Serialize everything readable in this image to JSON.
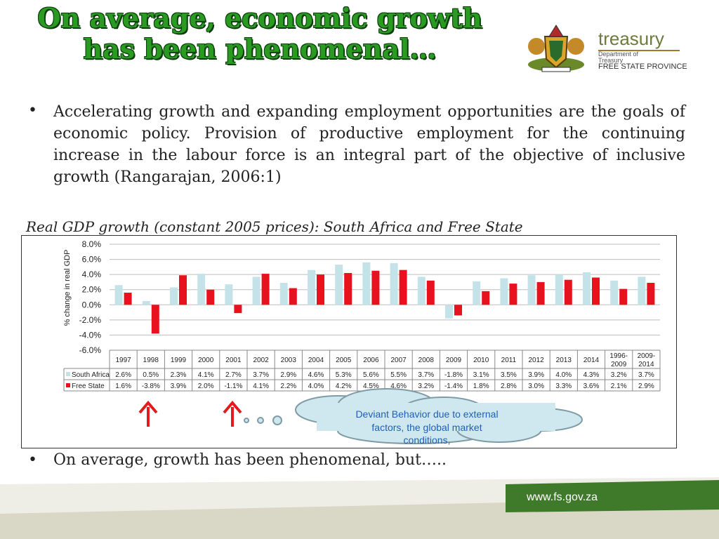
{
  "title_line1": "On average, economic growth",
  "title_line2": "has been phenomenal…",
  "logo": {
    "brand": "treasury",
    "dept_line1": "Department of",
    "dept_line2": "Treasury",
    "province": "FREE STATE PROVINCE"
  },
  "bullets": {
    "first": "Accelerating growth and expanding employment opportunities are the goals of economic policy. Provision of productive employment for the continuing increase in the labour force is an integral part of the objective of inclusive growth (Rangarajan, 2006:1)",
    "second": "On average, growth has been phenomenal, but….."
  },
  "chart_caption": "Real GDP growth (constant 2005 prices): South Africa and Free State",
  "callout": {
    "line1": "Deviant Behavior due to external",
    "line2": "factors, the global market",
    "line3": "conditions,"
  },
  "footer_url": "www.fs.gov.za",
  "colors": {
    "title_green": "#2a9a22",
    "south_africa": "#c4e3e9",
    "free_state": "#e8111e",
    "arrow_red": "#e21b1b",
    "cloud_fill": "#cfe8ef",
    "cloud_stroke": "#7f9ba5"
  },
  "chart_data": {
    "type": "bar",
    "ylabel": "% change in real GDP",
    "ylim": [
      -6,
      8
    ],
    "yticks": [
      "8.0%",
      "6.0%",
      "4.0%",
      "2.0%",
      "0.0%",
      "-2.0%",
      "-4.0%",
      "-6.0%"
    ],
    "categories": [
      "1997",
      "1998",
      "1999",
      "2000",
      "2001",
      "2002",
      "2003",
      "2004",
      "2005",
      "2006",
      "2007",
      "2008",
      "2009",
      "2010",
      "2011",
      "2012",
      "2013",
      "2014",
      "1996-2009",
      "2009-2014"
    ],
    "series": [
      {
        "name": "South Africa",
        "values": [
          2.6,
          0.5,
          2.3,
          4.1,
          2.7,
          3.7,
          2.9,
          4.6,
          5.3,
          5.6,
          5.5,
          3.7,
          -1.8,
          3.1,
          3.5,
          3.9,
          4.0,
          4.3,
          3.2,
          3.7
        ],
        "labels": [
          "2.6%",
          "0.5%",
          "2.3%",
          "4.1%",
          "2.7%",
          "3.7%",
          "2.9%",
          "4.6%",
          "5.3%",
          "5.6%",
          "5.5%",
          "3.7%",
          "-1.8%",
          "3.1%",
          "3.5%",
          "3.9%",
          "4.0%",
          "4.3%",
          "3.2%",
          "3.7%"
        ]
      },
      {
        "name": "Free State",
        "values": [
          1.6,
          -3.8,
          3.9,
          2.0,
          -1.1,
          4.1,
          2.2,
          4.0,
          4.2,
          4.5,
          4.6,
          3.2,
          -1.4,
          1.8,
          2.8,
          3.0,
          3.3,
          3.6,
          2.1,
          2.9
        ],
        "labels": [
          "1.6%",
          "-3.8%",
          "3.9%",
          "2.0%",
          "-1.1%",
          "4.1%",
          "2.2%",
          "4.0%",
          "4.2%",
          "4.5%",
          "4.6%",
          "3.2%",
          "-1.4%",
          "1.8%",
          "2.8%",
          "3.0%",
          "3.3%",
          "3.6%",
          "2.1%",
          "2.9%"
        ]
      }
    ],
    "grid": true,
    "legend": "data-table"
  }
}
